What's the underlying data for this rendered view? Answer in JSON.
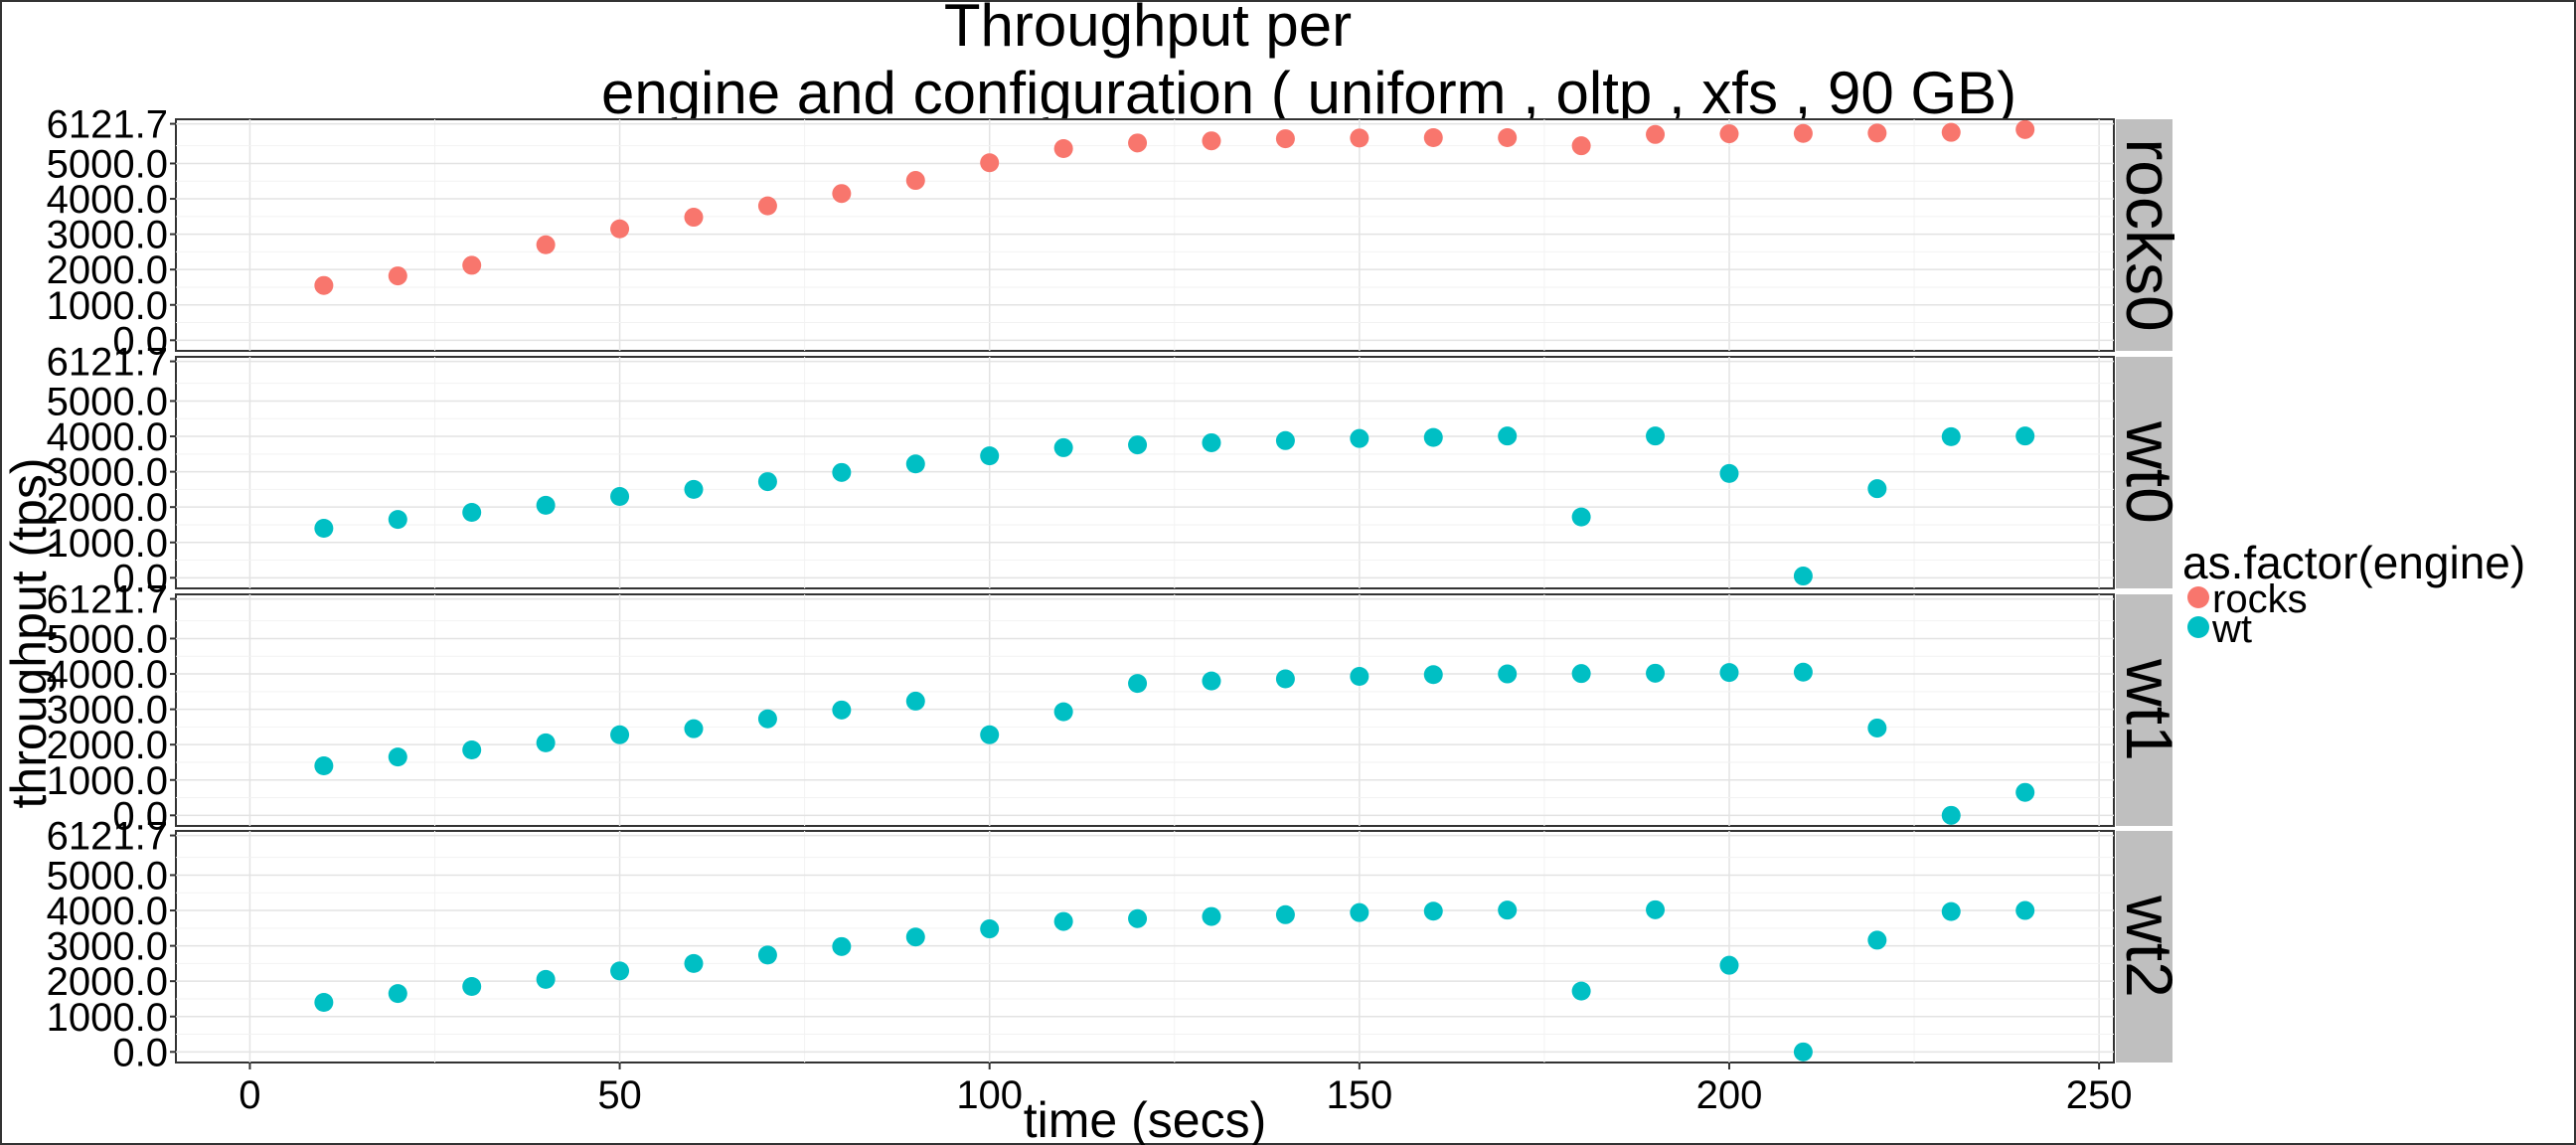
{
  "chart_data": {
    "type": "scatter",
    "title_lines": [
      "Throughput per",
      "engine and configuration ( uniform , oltp , xfs ,  90 GB)"
    ],
    "xlabel": "time (secs)",
    "ylabel": "throughput (tps)",
    "xlim": [
      -10,
      252
    ],
    "ylim": [
      -300,
      6250
    ],
    "x_ticks": [
      0,
      50,
      100,
      150,
      200,
      250
    ],
    "x_tick_labels": [
      "0",
      "50",
      "100",
      "150",
      "200",
      "250"
    ],
    "y_ticks": [
      0,
      1000,
      2000,
      3000,
      4000,
      5000,
      6121.7
    ],
    "y_tick_labels": [
      "0.0",
      "1000.0",
      "2000.0",
      "3000.0",
      "4000.0",
      "5000.0",
      "6121.7"
    ],
    "grid": true,
    "legend": {
      "title": "as.factor(engine)",
      "position": "right",
      "items": [
        {
          "label": "rocks",
          "color": "#F8766D"
        },
        {
          "label": "wt",
          "color": "#00BFC4"
        }
      ]
    },
    "panels": [
      {
        "strip": "rocks0",
        "engine": "rocks",
        "color": "#F8766D",
        "x": [
          10,
          20,
          30,
          40,
          50,
          60,
          70,
          80,
          90,
          100,
          110,
          120,
          130,
          140,
          150,
          160,
          170,
          180,
          190,
          200,
          210,
          220,
          230,
          240
        ],
        "y": [
          1550,
          1820,
          2120,
          2700,
          3150,
          3480,
          3800,
          4150,
          4520,
          5020,
          5420,
          5580,
          5640,
          5700,
          5720,
          5730,
          5730,
          5500,
          5820,
          5840,
          5850,
          5860,
          5880,
          5960
        ]
      },
      {
        "strip": "wt0",
        "engine": "wt",
        "color": "#00BFC4",
        "x": [
          10,
          20,
          30,
          40,
          50,
          60,
          70,
          80,
          90,
          100,
          110,
          120,
          130,
          140,
          150,
          160,
          170,
          180,
          190,
          200,
          210,
          220,
          230,
          240
        ],
        "y": [
          1400,
          1650,
          1850,
          2050,
          2300,
          2500,
          2720,
          2980,
          3220,
          3450,
          3680,
          3760,
          3820,
          3880,
          3940,
          3970,
          4010,
          1720,
          4010,
          2950,
          50,
          2520,
          3990,
          4010
        ]
      },
      {
        "strip": "wt1",
        "engine": "wt",
        "color": "#00BFC4",
        "x": [
          10,
          20,
          30,
          40,
          50,
          60,
          70,
          80,
          90,
          100,
          110,
          120,
          130,
          140,
          150,
          160,
          170,
          180,
          190,
          200,
          210,
          220,
          230,
          240
        ],
        "y": [
          1400,
          1650,
          1850,
          2050,
          2280,
          2450,
          2730,
          2980,
          3230,
          2280,
          2930,
          3730,
          3800,
          3860,
          3930,
          3980,
          4000,
          4010,
          4020,
          4040,
          4050,
          2470,
          0,
          650
        ]
      },
      {
        "strip": "wt2",
        "engine": "wt",
        "color": "#00BFC4",
        "x": [
          10,
          20,
          30,
          40,
          50,
          60,
          70,
          80,
          90,
          100,
          110,
          120,
          130,
          140,
          150,
          160,
          170,
          180,
          190,
          200,
          210,
          220,
          230,
          240
        ],
        "y": [
          1400,
          1650,
          1850,
          2050,
          2290,
          2500,
          2740,
          2980,
          3250,
          3480,
          3690,
          3770,
          3830,
          3880,
          3940,
          3980,
          4010,
          1720,
          4020,
          2450,
          0,
          3160,
          3970,
          4000
        ]
      }
    ]
  }
}
